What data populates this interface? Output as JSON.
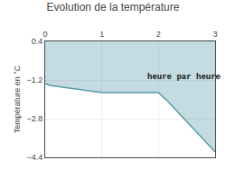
{
  "chart_data": {
    "type": "area",
    "title": "Evolution de la température",
    "ylabel": "Température en °C",
    "x": [
      0,
      0.08,
      1.0,
      2.0,
      2.15,
      3.0
    ],
    "values": [
      -1.35,
      -1.42,
      -1.72,
      -1.72,
      -2.05,
      -4.18
    ],
    "color": "#5599aa",
    "xlim": [
      0,
      3
    ],
    "ylim": [
      -4.4,
      0.4
    ],
    "xticks": [
      0,
      1,
      2,
      3
    ],
    "yticks": [
      0.4,
      -1.2,
      -2.8,
      -4.4
    ],
    "grid": true,
    "annotations": [
      {
        "text": "heure par heure",
        "x": 2.45,
        "y": -1.1
      }
    ]
  }
}
